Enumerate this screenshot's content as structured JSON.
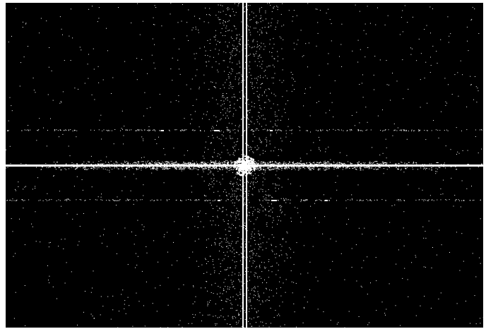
{
  "image": {
    "background_color": "#000000",
    "foreground_color": "#ffffff",
    "frame_color": "#ffffff"
  }
}
